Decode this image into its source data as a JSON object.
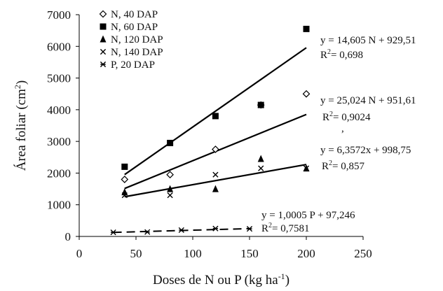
{
  "chart_data": {
    "type": "scatter",
    "xlabel": "Doses de N ou P (kg ha",
    "xlabel_sup": "-1",
    "xlabel_end": ")",
    "ylabel": "Área foliar (cm",
    "ylabel_sup": "2",
    "ylabel_end": ")",
    "xlim": [
      0,
      250
    ],
    "ylim": [
      0,
      7000
    ],
    "x_ticks": [
      0,
      50,
      100,
      150,
      200,
      250
    ],
    "y_ticks": [
      0,
      1000,
      2000,
      3000,
      4000,
      5000,
      6000,
      7000
    ],
    "x_tick_labels": [
      "0",
      "50",
      "100",
      "150",
      "200",
      "250"
    ],
    "y_tick_labels": [
      "0",
      "1000",
      "2000",
      "3000",
      "4000",
      "5000",
      "6000",
      "7000"
    ],
    "grid": false,
    "legend_position": "top-left",
    "series": [
      {
        "name": "N, 40 DAP",
        "marker": "diamond-open",
        "x": [
          40,
          80,
          120,
          160,
          200
        ],
        "y": [
          1800,
          1950,
          2750,
          4150,
          4500
        ]
      },
      {
        "name": "N, 60 DAP",
        "marker": "square",
        "x": [
          40,
          80,
          120,
          160,
          200
        ],
        "y": [
          2200,
          2950,
          3800,
          4150,
          6550
        ]
      },
      {
        "name": "N, 120 DAP",
        "marker": "triangle",
        "x": [
          40,
          80,
          120,
          160,
          200
        ],
        "y": [
          1400,
          1500,
          1500,
          2450,
          2150
        ]
      },
      {
        "name": "N, 140 DAP",
        "marker": "x",
        "x": [
          40,
          80,
          120,
          160,
          200
        ],
        "y": [
          1300,
          1300,
          1950,
          2150,
          2150
        ]
      },
      {
        "name": "P, 20 DAP",
        "marker": "asterisk",
        "x": [
          30,
          60,
          90,
          120,
          150
        ],
        "y": [
          130,
          140,
          200,
          250,
          240
        ]
      }
    ],
    "trendlines": [
      {
        "slope": 14.605,
        "intercept": 929.51,
        "x_range": [
          40,
          200
        ],
        "style": "solid"
      },
      {
        "slope": 25.024,
        "intercept": 951.61,
        "x_range": [
          40,
          200
        ],
        "style": "solid"
      },
      {
        "slope": 6.3572,
        "intercept": 998.75,
        "x_range": [
          40,
          200
        ],
        "style": "solid"
      },
      {
        "slope": 1.0005,
        "intercept": 97.246,
        "x_range": [
          30,
          150
        ],
        "style": "dashed"
      }
    ],
    "annotations": [
      {
        "equation": "y = 14,605 N + 929,51",
        "r2": "= 0,698"
      },
      {
        "equation": "y = 25,024 N + 951,61",
        "r2": "= 0,9024"
      },
      {
        "equation": "y = 6,3572x + 998,75",
        "r2": "= 0,857"
      },
      {
        "equation": "y = 1,0005 P + 97,246",
        "r2": "= 0,7581"
      }
    ],
    "r2_label": "R",
    "r2_sup": "2",
    "stray_mark": ","
  }
}
